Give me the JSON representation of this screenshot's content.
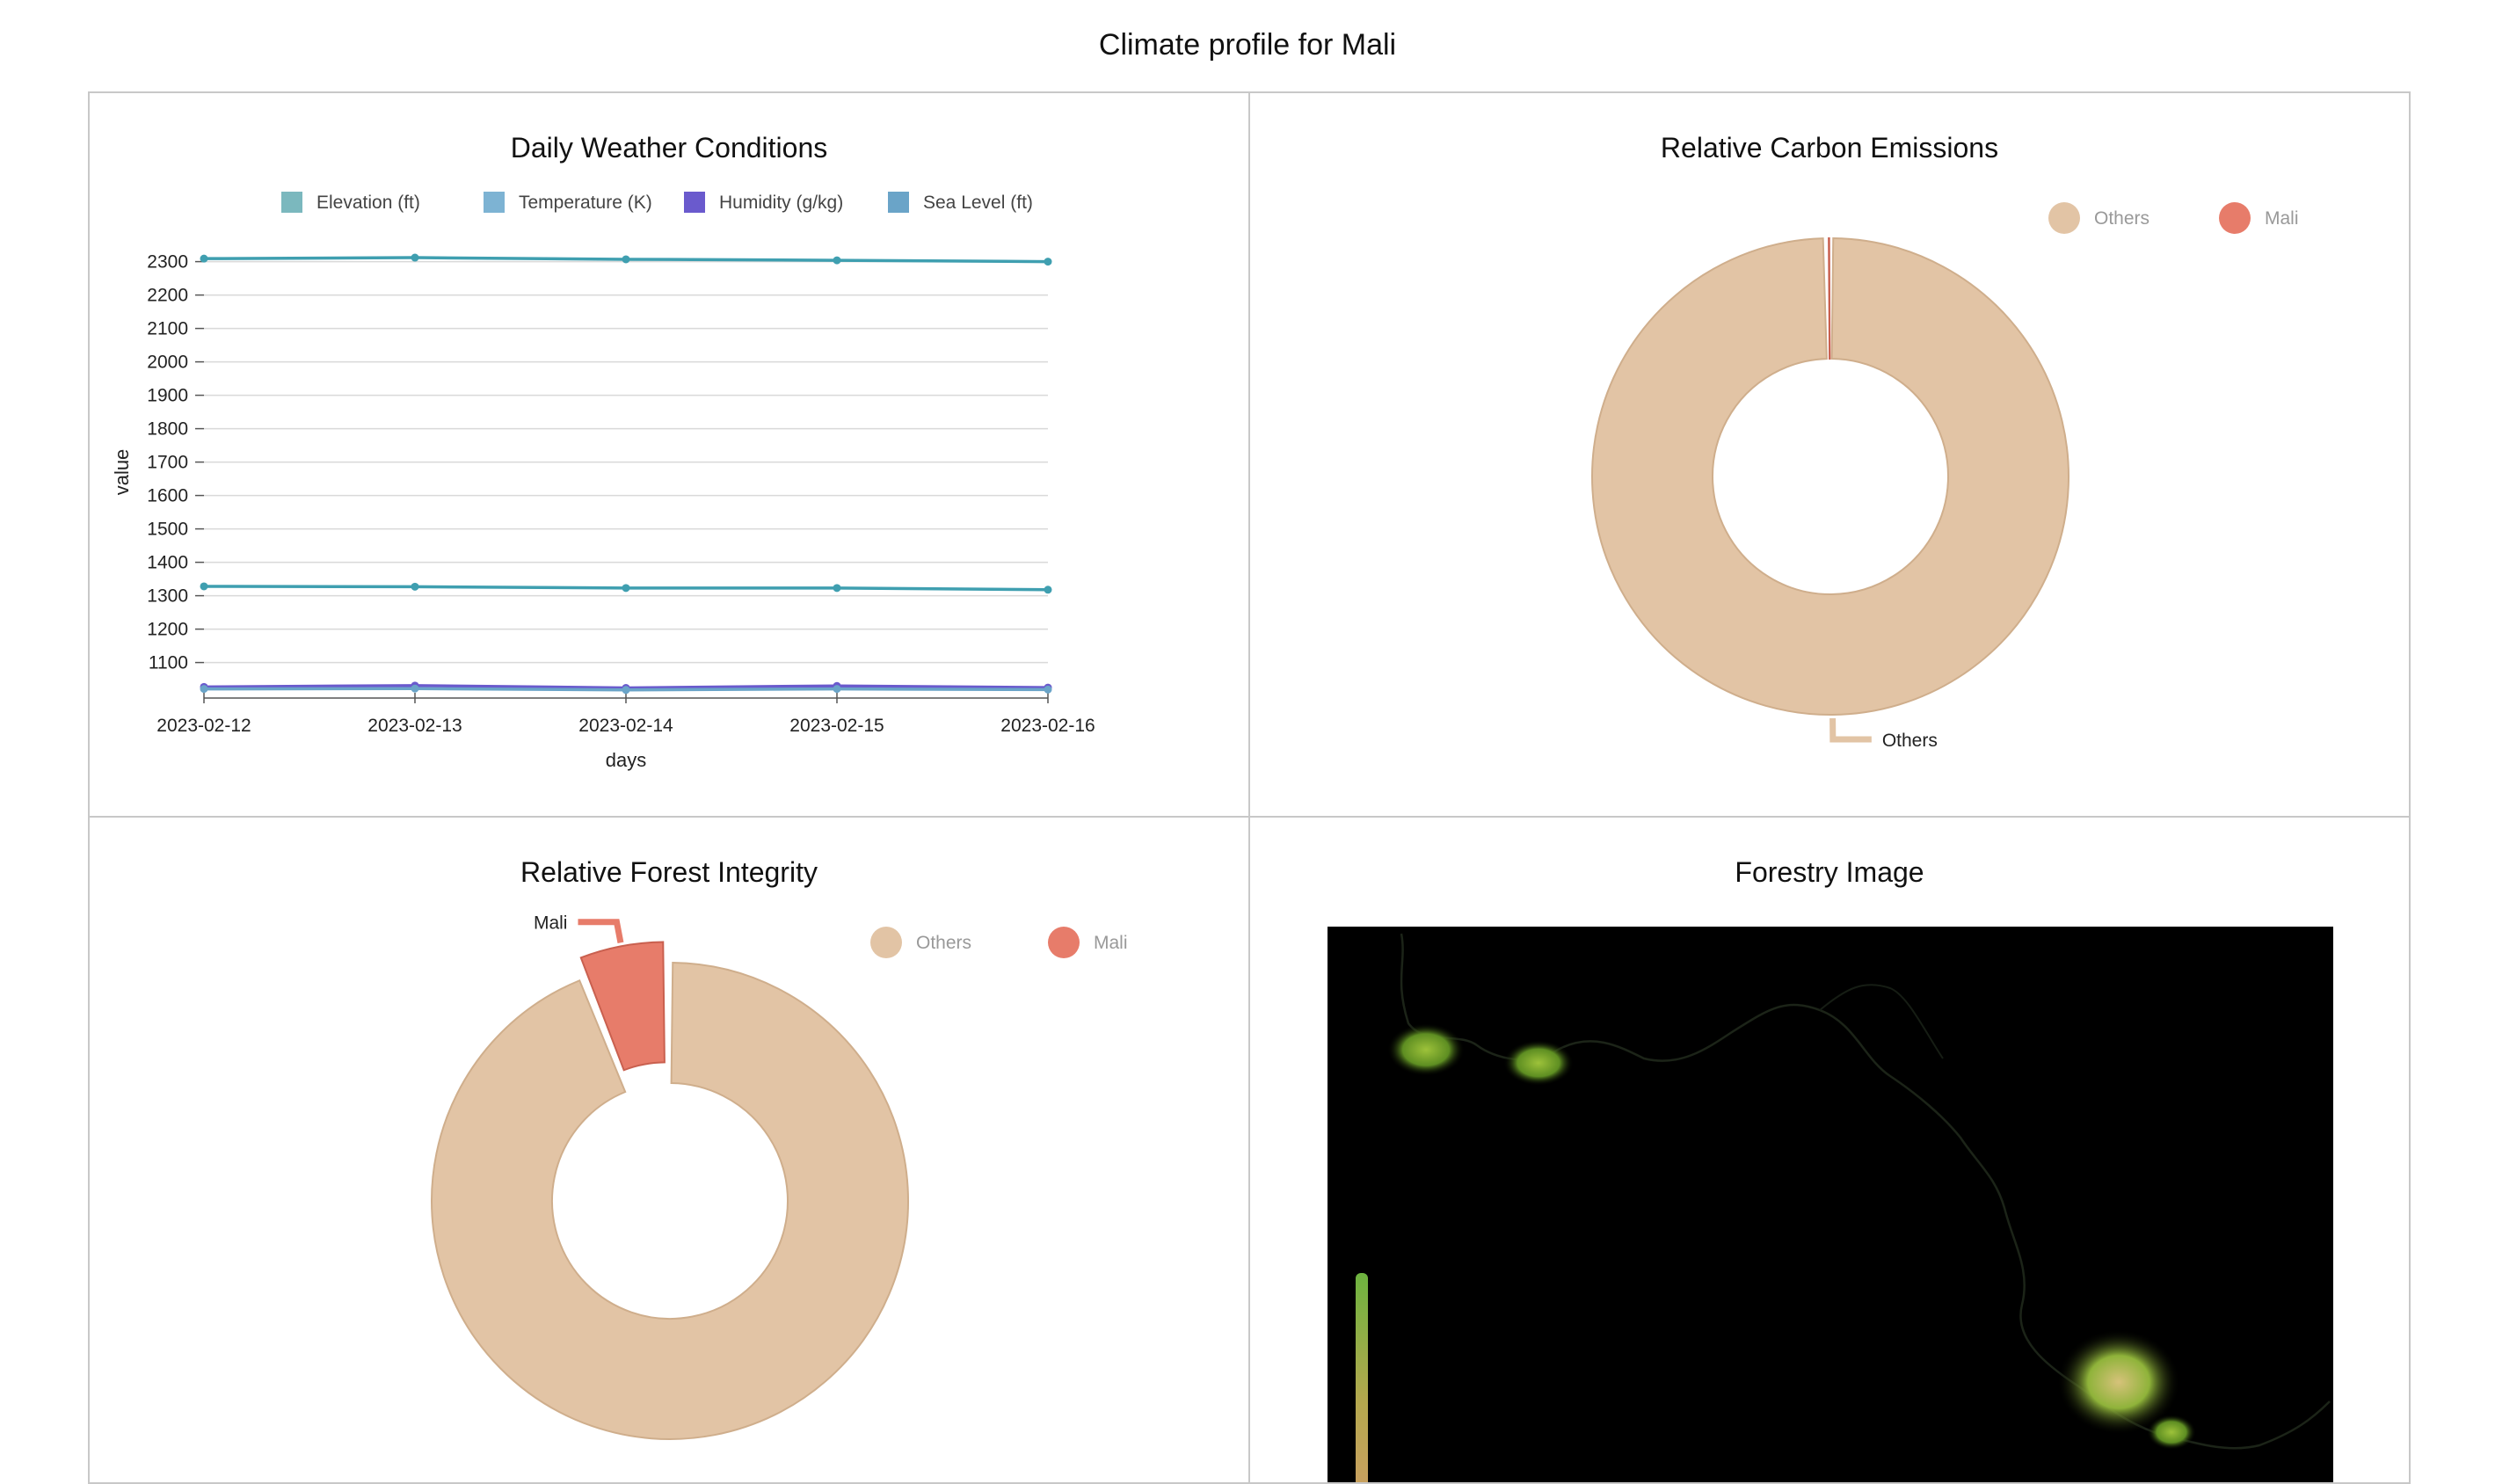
{
  "page": {
    "title": "Climate profile for Mali"
  },
  "colors": {
    "elevation": "#7bb8be",
    "temperature": "#7db3d3",
    "humidity": "#6a5acd",
    "sea_level": "#6aa4c8",
    "line_main": "#3f9fb0",
    "others": "#e2c4a5",
    "others_stroke": "#cfae8c",
    "mali": "#e77c6a",
    "mali_stroke": "#c9604f"
  },
  "weather": {
    "title": "Daily Weather Conditions",
    "chart_data": {
      "type": "line",
      "title": "Daily Weather Conditions",
      "xlabel": "days",
      "ylabel": "value",
      "categories": [
        "2023-02-12",
        "2023-02-13",
        "2023-02-14",
        "2023-02-15",
        "2023-02-16"
      ],
      "ylim": [
        1020,
        2320
      ],
      "yticks": [
        1100,
        1200,
        1300,
        1400,
        1500,
        1600,
        1700,
        1800,
        1900,
        2000,
        2100,
        2200,
        2300
      ],
      "legend_position": "top",
      "series": [
        {
          "name": "Elevation (ft)",
          "color_key": "elevation",
          "line_key": "line_main",
          "values": [
            2309,
            2312,
            2307,
            2304,
            2300
          ]
        },
        {
          "name": "Temperature (K)",
          "color_key": "temperature",
          "line_key": "line_main",
          "values": [
            1328,
            1327,
            1323,
            1323,
            1318
          ]
        },
        {
          "name": "Humidity (g/kg)",
          "color_key": "humidity",
          "line_key": "humidity",
          "values": [
            1027,
            1031,
            1024,
            1030,
            1025
          ]
        },
        {
          "name": "Sea Level (ft)",
          "color_key": "sea_level",
          "line_key": "sea_level",
          "values": [
            1021,
            1022,
            1018,
            1021,
            1019
          ]
        }
      ]
    }
  },
  "carbon": {
    "title": "Relative Carbon Emissions",
    "chart_data": {
      "type": "pie",
      "title": "Relative Carbon Emissions",
      "legend_position": "top-right",
      "series": [
        {
          "name": "Others",
          "color_key": "others",
          "stroke_key": "others_stroke",
          "value": 99.7
        },
        {
          "name": "Mali",
          "color_key": "mali",
          "stroke_key": "mali_stroke",
          "value": 0.3
        }
      ],
      "labels": [
        "Others"
      ]
    }
  },
  "forest": {
    "title": "Relative Forest Integrity",
    "chart_data": {
      "type": "pie",
      "title": "Relative Forest Integrity",
      "legend_position": "top-right",
      "series": [
        {
          "name": "Others",
          "color_key": "others",
          "stroke_key": "others_stroke",
          "value": 94
        },
        {
          "name": "Mali",
          "color_key": "mali",
          "stroke_key": "mali_stroke",
          "value": 6
        }
      ],
      "labels": [
        "Mali"
      ]
    }
  },
  "image_panel": {
    "title": "Forestry Image"
  }
}
